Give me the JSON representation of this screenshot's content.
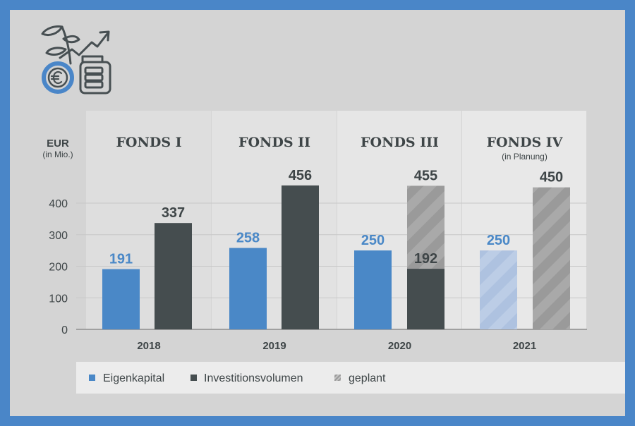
{
  "chart_data": {
    "type": "bar",
    "ylabel": "EUR",
    "ylabel_sub": "(in Mio.)",
    "ylim": [
      0,
      450
    ],
    "yticks": [
      0,
      100,
      200,
      300,
      400
    ],
    "grid": true,
    "categories": [
      "2018",
      "2019",
      "2020",
      "2021"
    ],
    "panels": [
      {
        "title": "FONDS I",
        "subtitle": ""
      },
      {
        "title": "FONDS II",
        "subtitle": ""
      },
      {
        "title": "FONDS III",
        "subtitle": ""
      },
      {
        "title": "FONDS IV",
        "subtitle": "(in Planung)"
      }
    ],
    "series": [
      {
        "name": "Eigenkapital",
        "values": [
          191,
          258,
          250,
          250
        ],
        "planned": [
          false,
          false,
          false,
          true
        ]
      },
      {
        "name": "Investitionsvolumen",
        "values": [
          337,
          456,
          192,
          0
        ],
        "planned_total": [
          null,
          null,
          455,
          450
        ]
      }
    ],
    "data_labels": {
      "eigenkapital": [
        "191",
        "258",
        "250",
        "250"
      ],
      "investition": [
        "337",
        "456",
        "192",
        ""
      ],
      "planned": [
        "",
        "",
        "455",
        "450"
      ]
    },
    "legend": {
      "placement": "bottom",
      "items": [
        "Eigenkapital",
        "Investitionsvolumen",
        "geplant"
      ]
    },
    "colors": {
      "eigenkapital": "#4a88c7",
      "investition": "#454d4f",
      "planned": "#a4a4a4",
      "planned_blue": "#b4c8e4",
      "label_blue": "#4a88c7",
      "label_dark": "#3e4547"
    }
  },
  "logo": {
    "icon": "euro-growth-savings-jar-icon"
  }
}
